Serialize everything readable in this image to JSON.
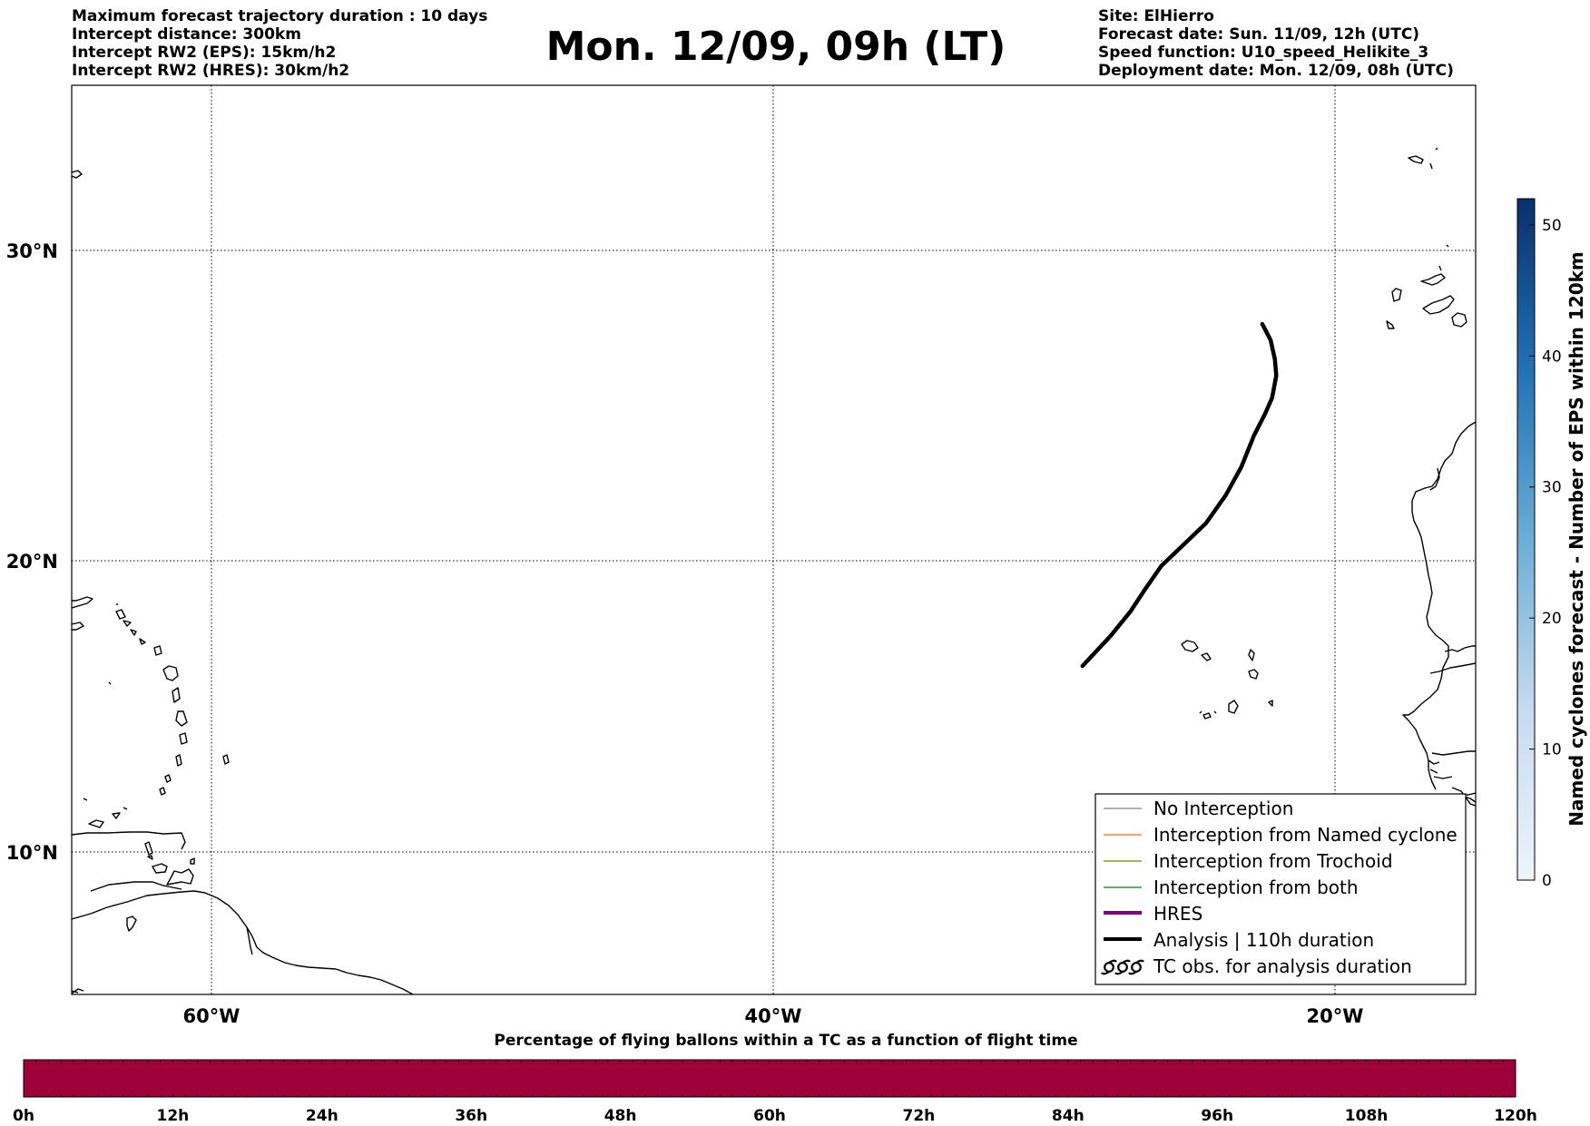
{
  "header": {
    "left_lines": [
      "Maximum forecast trajectory duration : 10 days",
      "Intercept distance: 300km",
      "Intercept RW2 (EPS):  15km/h2",
      "Intercept RW2 (HRES): 30km/h2"
    ],
    "title": "Mon. 12/09, 09h (LT)",
    "right_lines": [
      "Site: ElHierro",
      "Forecast date: Sun. 11/09, 12h (UTC)",
      "Speed function: U10_speed_Helikite_3",
      "Deployment date: Mon. 12/09, 08h (UTC)"
    ]
  },
  "map": {
    "lat_labels": [
      "30°N",
      "20°N",
      "10°N"
    ],
    "lon_labels": [
      "60°W",
      "40°W",
      "20°W"
    ],
    "extent": {
      "lon_min": -65,
      "lon_max": -15,
      "lat_min": 5.4,
      "lat_max": 34.7
    },
    "graticule": {
      "lats": [
        30,
        20,
        10
      ],
      "lons": [
        -60,
        -40,
        -20
      ]
    },
    "analysis_track": [
      [
        -22.6,
        27.6
      ],
      [
        -22.3,
        27.1
      ],
      [
        -22.15,
        26.5
      ],
      [
        -22.1,
        26.0
      ],
      [
        -22.25,
        25.3
      ],
      [
        -22.5,
        24.8
      ],
      [
        -22.9,
        24.1
      ],
      [
        -23.35,
        23.1
      ],
      [
        -23.9,
        22.2
      ],
      [
        -24.6,
        21.3
      ],
      [
        -25.4,
        20.6
      ],
      [
        -26.2,
        19.9
      ],
      [
        -26.8,
        19.1
      ],
      [
        -27.3,
        18.4
      ],
      [
        -28.0,
        17.6
      ],
      [
        -29.0,
        16.6
      ]
    ]
  },
  "legend": {
    "items": [
      {
        "label": "No Interception",
        "color": "#808080",
        "style": "thin"
      },
      {
        "label": "Interception from Named cyclone",
        "color": "#ff6600",
        "style": "thin"
      },
      {
        "label": "Interception from Trochoid",
        "color": "#808000",
        "style": "thin"
      },
      {
        "label": "Interception from both",
        "color": "#008000",
        "style": "thin"
      },
      {
        "label": "HRES",
        "color": "#800080",
        "style": "thick"
      },
      {
        "label": "Analysis | 110h duration",
        "color": "#000000",
        "style": "thick"
      },
      {
        "label": "TC obs. for analysis duration",
        "color": "#000000",
        "style": "tc-symbol"
      }
    ]
  },
  "colorbar": {
    "label": "Named cyclones forecast - Number of EPS within 120km",
    "ticks": [
      "0",
      "10",
      "20",
      "30",
      "40",
      "50"
    ],
    "tick_values": [
      0,
      10,
      20,
      30,
      40,
      50
    ],
    "max_value": 52,
    "color_low": "#e6eef8",
    "color_high": "#08306b"
  },
  "timeline": {
    "title": "Percentage of flying ballons within a TC as a function of flight time",
    "ticks": [
      "0h",
      "12h",
      "24h",
      "36h",
      "48h",
      "60h",
      "72h",
      "84h",
      "96h",
      "108h",
      "120h"
    ],
    "fill_color": "#9e0039",
    "minor_divisions": 120
  }
}
